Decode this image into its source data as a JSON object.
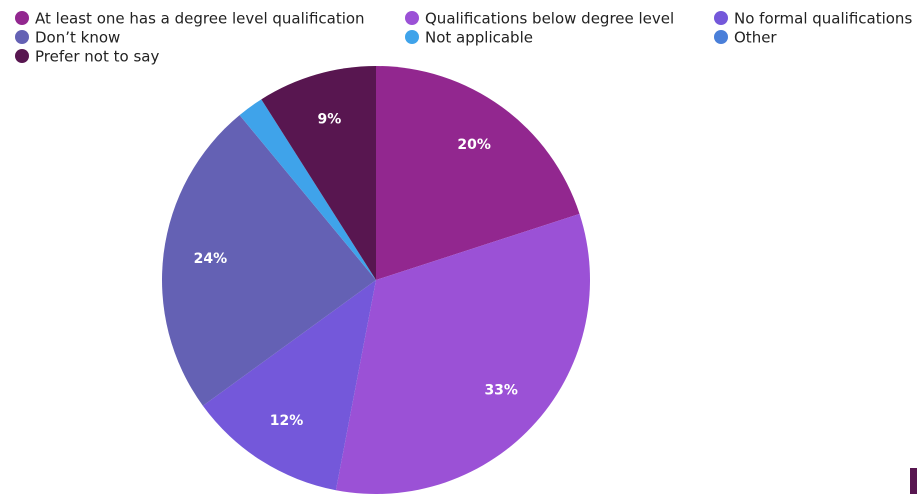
{
  "chart_data": {
    "type": "pie",
    "categories": [
      "At least one has a degree level qualification",
      "Qualifications below degree level",
      "No formal qualifications",
      "Don’t know",
      "Not applicable",
      "Other",
      "Prefer not to say"
    ],
    "values": [
      20,
      33,
      12,
      24,
      2,
      0,
      9
    ],
    "value_labels": [
      "20%",
      "33%",
      "12%",
      "24%",
      null,
      null,
      "9%"
    ],
    "colors": [
      "#92278f",
      "#9b51d6",
      "#7458da",
      "#6461b4",
      "#3fa3ea",
      "#4a7fd9",
      "#581650"
    ],
    "legend": "top"
  }
}
